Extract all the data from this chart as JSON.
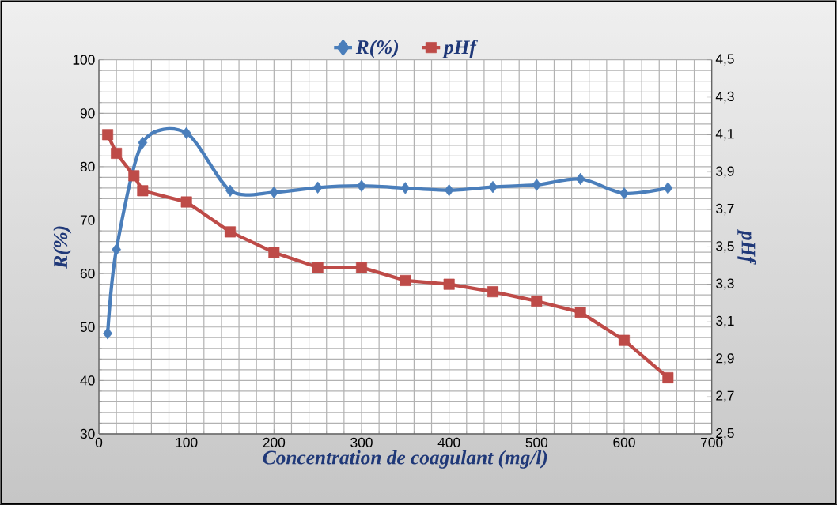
{
  "chart_data": {
    "type": "line",
    "xlabel": "Concentration de coagulant (mg/l)",
    "ylabel": "R(%)",
    "y2label": "pHf",
    "x": [
      10,
      20,
      40,
      50,
      100,
      150,
      200,
      250,
      300,
      350,
      400,
      450,
      500,
      550,
      600,
      650
    ],
    "series": [
      {
        "name": "R(%)",
        "color": "#4a7ebb",
        "marker": "diamond",
        "values": [
          48.8,
          64.5,
          null,
          84.5,
          86.3,
          75.5,
          75.2,
          76.1,
          76.4,
          76.0,
          75.6,
          76.2,
          76.6,
          77.7,
          75.0,
          76.0
        ]
      },
      {
        "name": "pHf",
        "color": "#be4b48",
        "marker": "square",
        "axis": "y2",
        "values": [
          4.1,
          4.0,
          3.88,
          3.8,
          3.74,
          3.58,
          3.47,
          3.39,
          3.39,
          3.32,
          3.3,
          3.26,
          3.21,
          3.15,
          3.0,
          2.8
        ]
      }
    ],
    "xlim": [
      0,
      700
    ],
    "xticks": [
      0,
      100,
      200,
      300,
      400,
      500,
      600,
      700
    ],
    "ylim": [
      30,
      100
    ],
    "yticks": [
      30,
      40,
      50,
      60,
      70,
      80,
      90,
      100
    ],
    "y2lim": [
      2.5,
      4.5
    ],
    "y2ticks": [
      {
        "value": 2.5,
        "label": "2,5"
      },
      {
        "value": 2.7,
        "label": "2,7"
      },
      {
        "value": 2.9,
        "label": "2,9"
      },
      {
        "value": 3.1,
        "label": "3,1"
      },
      {
        "value": 3.3,
        "label": "3,3"
      },
      {
        "value": 3.5,
        "label": "3,5"
      },
      {
        "value": 3.7,
        "label": "3,7"
      },
      {
        "value": 3.9,
        "label": "3,9"
      },
      {
        "value": 4.1,
        "label": "4,1"
      },
      {
        "value": 4.3,
        "label": "4,3"
      },
      {
        "value": 4.5,
        "label": "4,5"
      }
    ],
    "grid": true,
    "legend": "top"
  }
}
